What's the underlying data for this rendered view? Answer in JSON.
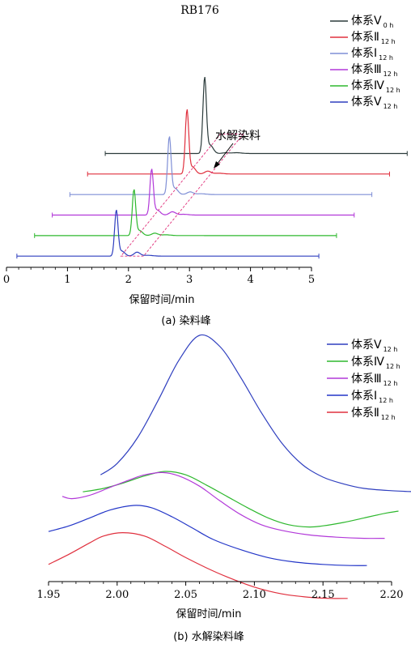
{
  "chart_data": [
    {
      "type": "line",
      "title": "RB176",
      "caption": "(a)  染料峰",
      "xlabel": "保留时间/min",
      "ylabel": "",
      "xlim": [
        0,
        5
      ],
      "xticks": [
        "0",
        "1",
        "2",
        "3",
        "4",
        "5"
      ],
      "legend_position": "top-right",
      "annotation": "水解染料",
      "series": [
        {
          "name_main": "体系Ⅴ",
          "name_sub": "0 h",
          "color": "#2b3b3b",
          "offset": 1.42,
          "main_peak_x": 1.78,
          "main_peak_height": 5.8,
          "hydrolysis_peak_height": 0.05
        },
        {
          "name_main": "体系Ⅱ",
          "name_sub": "12 h",
          "color": "#e0303e",
          "offset": 1.14,
          "main_peak_x": 1.78,
          "main_peak_height": 4.9,
          "hydrolysis_peak_height": 0.22
        },
        {
          "name_main": "体系Ⅰ",
          "name_sub": "12 h",
          "color": "#7f8fd6",
          "offset": 0.86,
          "main_peak_x": 1.78,
          "main_peak_height": 4.4,
          "hydrolysis_peak_height": 0.2
        },
        {
          "name_main": "体系Ⅲ",
          "name_sub": "12 h",
          "color": "#b239d9",
          "offset": 0.58,
          "main_peak_x": 1.78,
          "main_peak_height": 3.5,
          "hydrolysis_peak_height": 0.25
        },
        {
          "name_main": "体系Ⅳ",
          "name_sub": "12 h",
          "color": "#2eb82e",
          "offset": 0.3,
          "main_peak_x": 1.78,
          "main_peak_height": 3.5,
          "hydrolysis_peak_height": 0.18
        },
        {
          "name_main": "体系Ⅴ",
          "name_sub": "12 h",
          "color": "#2f3fbf",
          "offset": 0.02,
          "main_peak_x": 1.78,
          "main_peak_height": 3.5,
          "hydrolysis_peak_height": 0.3
        }
      ]
    },
    {
      "type": "line",
      "caption": "(b)  水解染料峰",
      "xlabel": "保留时间/min",
      "ylabel": "",
      "xlim": [
        1.95,
        2.2
      ],
      "xticks": [
        "1.95",
        "2.00",
        "2.05",
        "2.10",
        "2.15",
        "2.20"
      ],
      "legend_position": "top-right",
      "series": [
        {
          "name_main": "体系Ⅴ",
          "name_sub": "12 h",
          "color": "#2f3fbf",
          "x": [
            1.988,
            2.0,
            2.015,
            2.03,
            2.045,
            2.06,
            2.075,
            2.09,
            2.105,
            2.12,
            2.135,
            2.15,
            2.165,
            2.18,
            2.2,
            2.219
          ],
          "y": [
            0.67,
            0.77,
            1.0,
            1.33,
            1.68,
            1.9,
            1.8,
            1.53,
            1.22,
            0.95,
            0.76,
            0.65,
            0.59,
            0.55,
            0.53,
            0.52
          ]
        },
        {
          "name_main": "体系Ⅳ",
          "name_sub": "12 h",
          "color": "#2eb82e",
          "x": [
            1.975,
            1.99,
            2.005,
            2.02,
            2.035,
            2.05,
            2.065,
            2.08,
            2.095,
            2.11,
            2.125,
            2.14,
            2.15,
            2.165,
            2.18,
            2.195,
            2.205
          ],
          "y": [
            0.52,
            0.55,
            0.6,
            0.66,
            0.7,
            0.67,
            0.58,
            0.48,
            0.38,
            0.29,
            0.23,
            0.21,
            0.22,
            0.25,
            0.29,
            0.33,
            0.35
          ]
        },
        {
          "name_main": "体系Ⅲ",
          "name_sub": "12 h",
          "color": "#b239d9",
          "x": [
            1.96,
            1.967,
            1.98,
            1.995,
            2.01,
            2.02,
            2.033,
            2.045,
            2.06,
            2.075,
            2.09,
            2.105,
            2.12,
            2.14,
            2.16,
            2.18,
            2.195
          ],
          "y": [
            0.48,
            0.46,
            0.49,
            0.56,
            0.63,
            0.67,
            0.69,
            0.66,
            0.57,
            0.44,
            0.32,
            0.23,
            0.18,
            0.14,
            0.12,
            0.11,
            0.11
          ]
        },
        {
          "name_main": "体系Ⅰ",
          "name_sub": "12 h",
          "color": "#2336c8",
          "x": [
            1.95,
            1.965,
            1.98,
            1.995,
            2.012,
            2.025,
            2.04,
            2.055,
            2.07,
            2.09,
            2.11,
            2.13,
            2.15,
            2.17,
            2.182
          ],
          "y": [
            0.17,
            0.22,
            0.29,
            0.36,
            0.4,
            0.38,
            0.3,
            0.2,
            0.1,
            0.01,
            -0.06,
            -0.1,
            -0.12,
            -0.13,
            -0.13
          ]
        },
        {
          "name_main": "体系Ⅱ",
          "name_sub": "12 h",
          "color": "#e0303e",
          "x": [
            1.95,
            1.965,
            1.98,
            1.99,
            2.004,
            2.02,
            2.035,
            2.05,
            2.065,
            2.08,
            2.1,
            2.12,
            2.14,
            2.155,
            2.168
          ],
          "y": [
            -0.12,
            -0.03,
            0.07,
            0.13,
            0.16,
            0.13,
            0.04,
            -0.06,
            -0.15,
            -0.23,
            -0.32,
            -0.38,
            -0.41,
            -0.42,
            -0.42
          ]
        }
      ]
    }
  ]
}
